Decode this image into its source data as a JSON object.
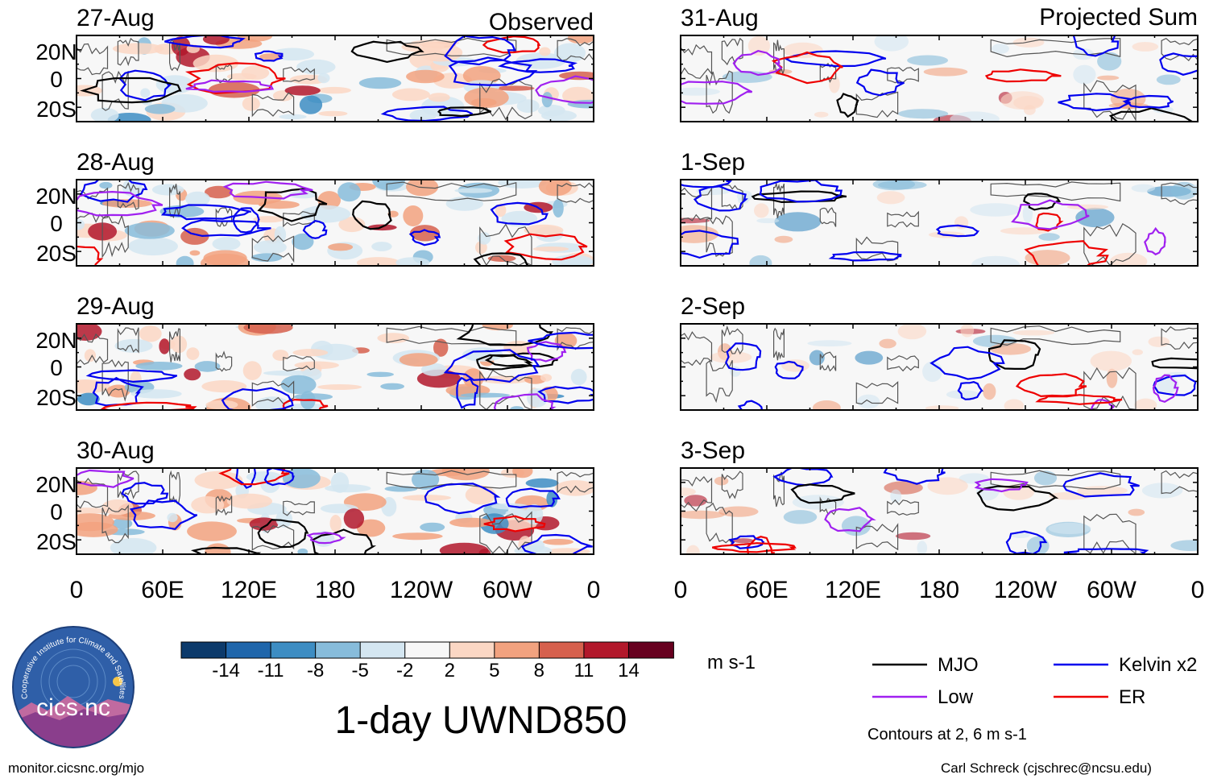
{
  "chart_data": {
    "type": "heatmap",
    "variable": "1-day UWND850",
    "units": "m s-1",
    "column_titles": {
      "left": "Observed",
      "right": "Projected Sum"
    },
    "panels": [
      {
        "date": "27-Aug",
        "column": "left",
        "row": 0
      },
      {
        "date": "28-Aug",
        "column": "left",
        "row": 1
      },
      {
        "date": "29-Aug",
        "column": "left",
        "row": 2
      },
      {
        "date": "30-Aug",
        "column": "left",
        "row": 3
      },
      {
        "date": "31-Aug",
        "column": "right",
        "row": 0
      },
      {
        "date": "1-Sep",
        "column": "right",
        "row": 1
      },
      {
        "date": "2-Sep",
        "column": "right",
        "row": 2
      },
      {
        "date": "3-Sep",
        "column": "right",
        "row": 3
      }
    ],
    "lat_ticks": [
      "20N",
      "0",
      "20S"
    ],
    "lat_range": [
      -30,
      30
    ],
    "lon_ticks": [
      "0",
      "60E",
      "120E",
      "180",
      "120W",
      "60W",
      "0"
    ],
    "lon_range": [
      0,
      360
    ],
    "colorbar": {
      "levels": [
        "-14",
        "-11",
        "-8",
        "-5",
        "-2",
        "2",
        "5",
        "8",
        "11",
        "14"
      ],
      "colors": [
        "#0c3a6b",
        "#1f66ab",
        "#3d8dc3",
        "#87bcdb",
        "#d4e6f1",
        "#f7f7f7",
        "#fbd7c4",
        "#f2a27f",
        "#d6604d",
        "#b2182b",
        "#67001f"
      ]
    },
    "legend": [
      {
        "label": "MJO",
        "color": "#000000"
      },
      {
        "label": "Kelvin x2",
        "color": "#0000ee"
      },
      {
        "label": "Low",
        "color": "#a020f0"
      },
      {
        "label": "ER",
        "color": "#ee0000"
      }
    ],
    "contour_note": "Contours at 2, 6 m s-1"
  },
  "logo": {
    "text": "cics.nc",
    "ring_text": "Cooperative Institute for Climate and Satellites"
  },
  "footer": {
    "url": "monitor.cicsnc.org/mjo",
    "credit": "Carl Schreck (cjschrec@ncsu.edu)"
  }
}
